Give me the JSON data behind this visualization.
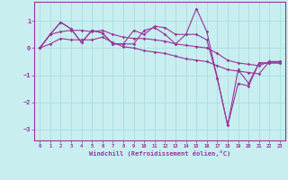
{
  "background_color": "#c8eef0",
  "grid_color": "#aadddd",
  "line_color": "#993399",
  "xlim": [
    -0.5,
    23.5
  ],
  "ylim": [
    -3.4,
    1.7
  ],
  "xlabel": "Windchill (Refroidissement éolien,°C)",
  "yticks": [
    -3,
    -2,
    -1,
    0,
    1
  ],
  "xticks": [
    0,
    1,
    2,
    3,
    4,
    5,
    6,
    7,
    8,
    9,
    10,
    11,
    12,
    13,
    14,
    15,
    16,
    17,
    18,
    19,
    20,
    21,
    22,
    23
  ],
  "series": [
    [
      0.0,
      0.5,
      0.95,
      0.7,
      0.2,
      0.65,
      0.55,
      0.15,
      0.15,
      0.65,
      0.5,
      0.8,
      0.75,
      0.5,
      0.5,
      1.45,
      0.6,
      -1.1,
      -2.85,
      -1.3,
      -1.4,
      -0.55,
      -0.55,
      -0.55
    ],
    [
      0.0,
      0.5,
      0.95,
      0.7,
      0.2,
      0.65,
      0.55,
      0.15,
      0.15,
      0.15,
      0.65,
      0.75,
      0.5,
      0.15,
      0.5,
      0.5,
      0.3,
      -1.1,
      -2.85,
      -0.8,
      -1.3,
      -0.55,
      -0.55,
      -0.55
    ],
    [
      0.0,
      0.15,
      0.35,
      0.3,
      0.3,
      0.3,
      0.4,
      0.2,
      0.05,
      0.0,
      -0.1,
      -0.15,
      -0.2,
      -0.3,
      -0.4,
      -0.45,
      -0.5,
      -0.65,
      -0.8,
      -0.85,
      -0.9,
      -0.95,
      -0.5,
      -0.5
    ],
    [
      0.0,
      0.5,
      0.6,
      0.65,
      0.65,
      0.6,
      0.65,
      0.5,
      0.4,
      0.35,
      0.35,
      0.3,
      0.25,
      0.15,
      0.1,
      0.05,
      0.0,
      -0.2,
      -0.45,
      -0.55,
      -0.6,
      -0.65,
      -0.5,
      -0.5
    ]
  ],
  "figsize": [
    3.2,
    2.0
  ],
  "dpi": 100
}
